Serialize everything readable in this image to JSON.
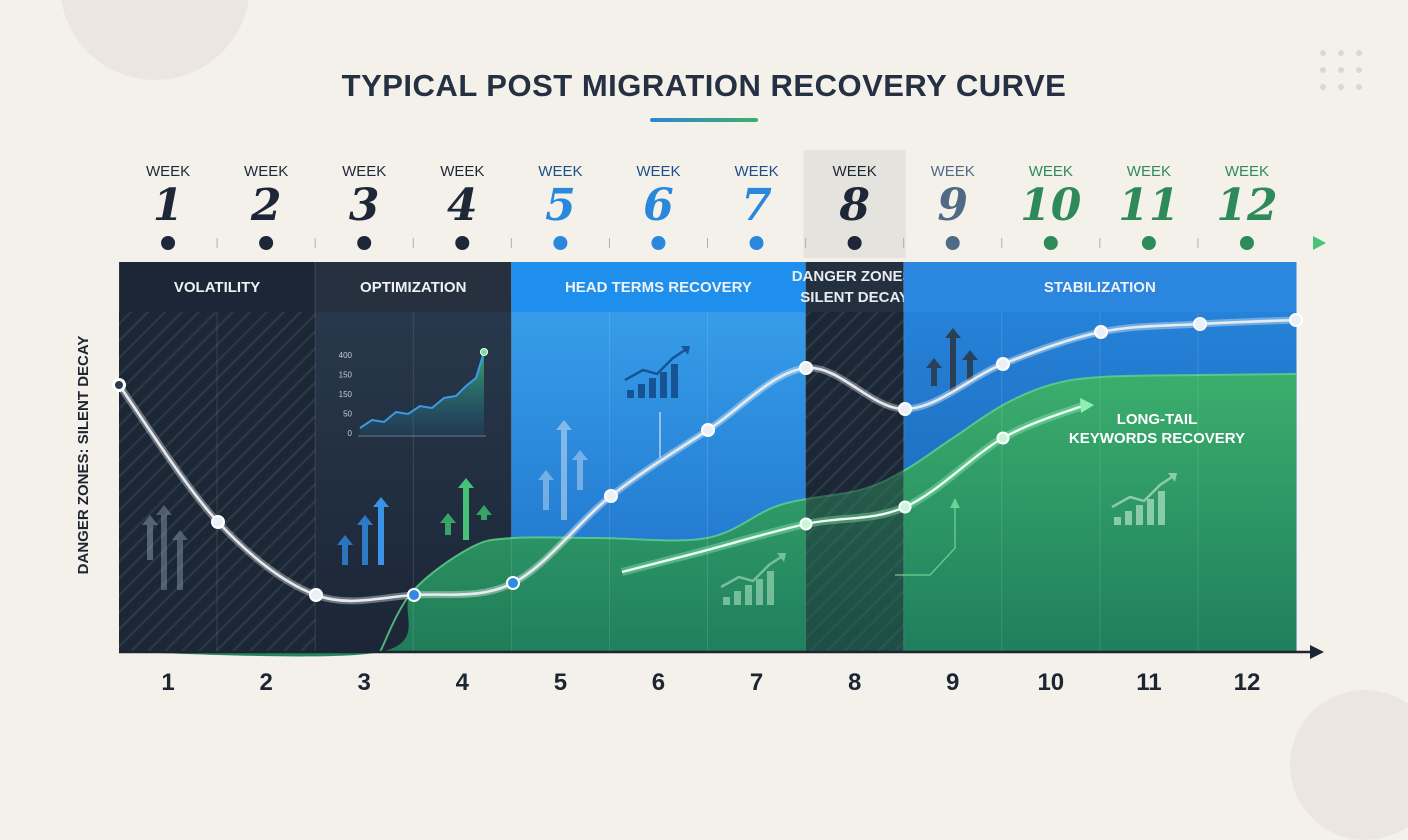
{
  "chart_data": {
    "type": "line",
    "title": "TYPICAL POST MIGRATION RECOVERY CURVE",
    "ylabel": "DANGER ZONES: SILENT DECAY",
    "week_label": "WEEK",
    "x": [
      1,
      2,
      3,
      4,
      5,
      6,
      7,
      8,
      9,
      10,
      11,
      12
    ],
    "phases": [
      {
        "label": "VOLATILITY",
        "start": 1,
        "end": 2,
        "color": "#1b2736"
      },
      {
        "label": "OPTIMIZATION",
        "start": 3,
        "end": 4,
        "color": "#26303e"
      },
      {
        "label": "HEAD TERMS RECOVERY",
        "start": 5,
        "end": 7,
        "color": "#1e8fec"
      },
      {
        "label": "DANGER ZONES: SILENT DECAY",
        "start": 8,
        "end": 8,
        "color": "#243040"
      },
      {
        "label": "STABILIZATION",
        "start": 9,
        "end": 12,
        "color": "#2a86de"
      }
    ],
    "annotation": "LONG-TAIL KEYWORDS RECOVERY",
    "inset_ticks": [
      "400",
      "150",
      "150",
      "50",
      "0"
    ],
    "colors": {
      "dark": "#1c2838",
      "blue": "#2a8be0",
      "green": "#3bb063",
      "white_line": "#e8edf2"
    }
  }
}
